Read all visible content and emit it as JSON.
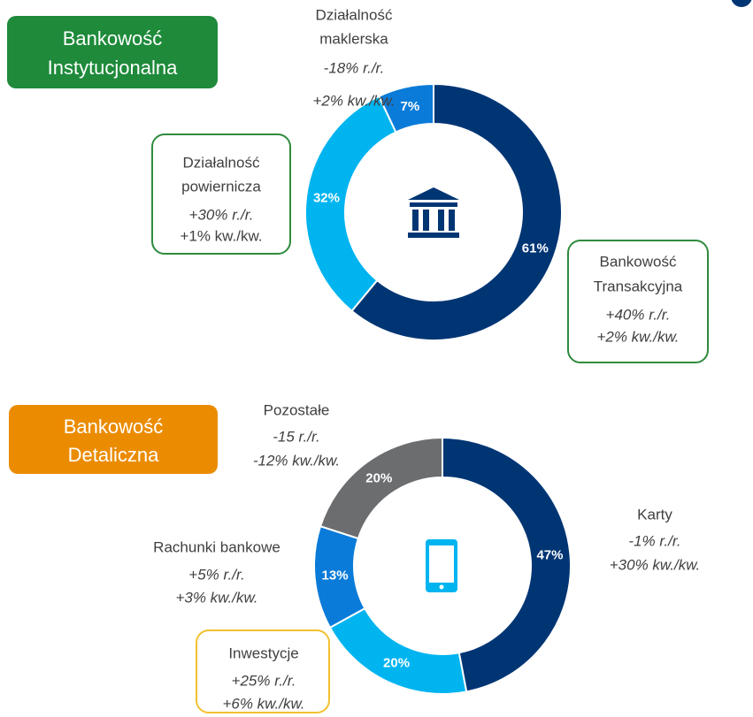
{
  "chart_data": [
    {
      "type": "pie",
      "badge_lines": [
        "Bankowość",
        "Instytucjonalna"
      ],
      "categories": [
        "Bankowość Transakcyjna",
        "Działalność powiernicza",
        "Działalność maklerska"
      ],
      "values": [
        61,
        32,
        7
      ],
      "value_labels": [
        "61%",
        "32%",
        "7%"
      ],
      "colors": [
        "#003574",
        "#00b4f0",
        "#0a7bd9"
      ],
      "annotations": [
        {
          "name_lines": [
            "Bankowość",
            "Transakcyjna"
          ],
          "yoy": "+40% r./r.",
          "qoq": "+2% kw./kw."
        },
        {
          "name_lines": [
            "Działalność",
            "powiernicza"
          ],
          "yoy": "+30% r./r.",
          "qoq": "+1% kw./kw."
        },
        {
          "name_lines": [
            "Działalność",
            "maklerska"
          ],
          "yoy": "-18% r./r.",
          "qoq": "+2% kw./kw."
        }
      ]
    },
    {
      "type": "pie",
      "badge_lines": [
        "Bankowość",
        "Detaliczna"
      ],
      "categories": [
        "Karty",
        "Inwestycje",
        "Rachunki bankowe",
        "Pozostałe"
      ],
      "values": [
        47,
        20,
        13,
        20
      ],
      "value_labels": [
        "47%",
        "20%",
        "13%",
        "20%"
      ],
      "colors": [
        "#003574",
        "#00b4f0",
        "#0a7bd9",
        "#6b6d6f"
      ],
      "annotations": [
        {
          "name_lines": [
            "Karty"
          ],
          "yoy": "-1% r./r.",
          "qoq": "+30% kw./kw."
        },
        {
          "name_lines": [
            "Inwestycje"
          ],
          "yoy": "+25% r./r.",
          "qoq": "+6% kw./kw."
        },
        {
          "name_lines": [
            "Rachunki bankowe"
          ],
          "yoy": "+5% r./r.",
          "qoq": "+3% kw./kw."
        },
        {
          "name_lines": [
            "Pozostałe"
          ],
          "yoy": "-15 r./r.",
          "qoq": "-12% kw./kw."
        }
      ]
    }
  ]
}
